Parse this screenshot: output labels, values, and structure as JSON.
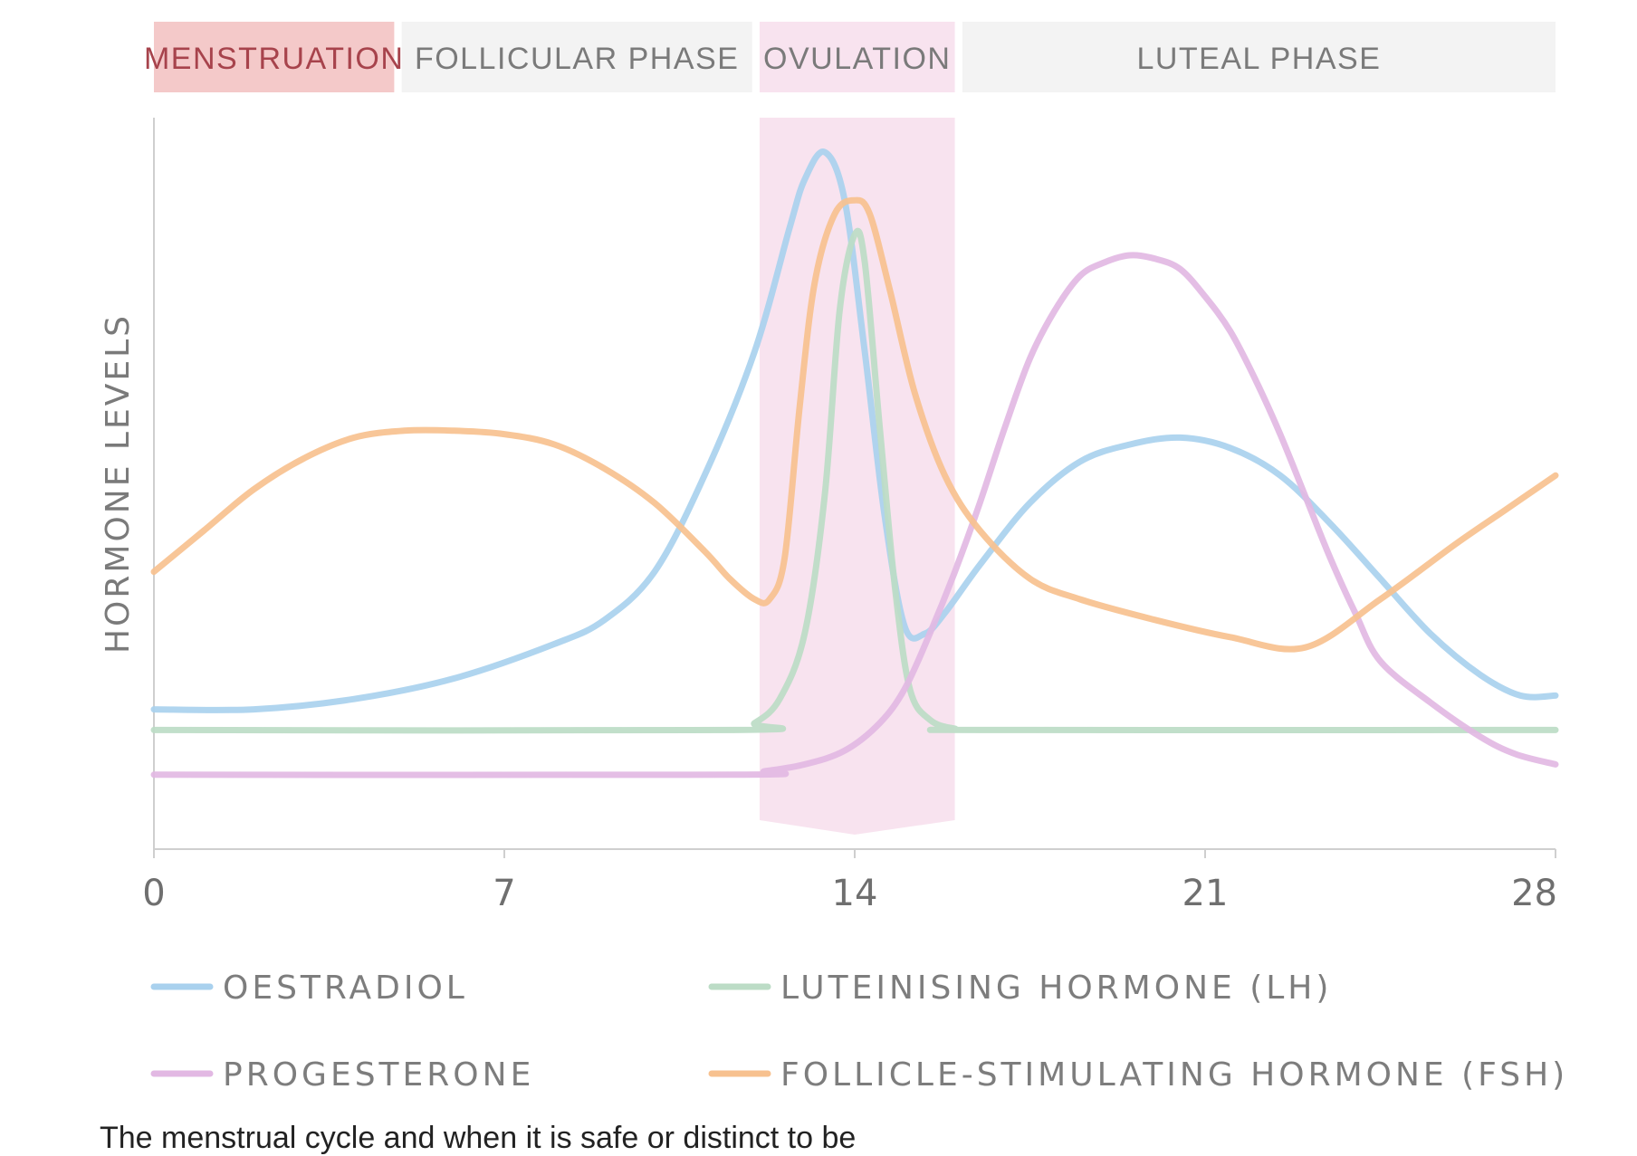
{
  "chart_data": {
    "type": "line",
    "ylabel": "HORMONE LEVELS",
    "xlim": [
      0,
      28
    ],
    "x_ticks": [
      "0",
      "7",
      "14",
      "21",
      "28"
    ],
    "phases": [
      {
        "label": "MENSTRUATION",
        "start": 0,
        "end": 4.8,
        "fill": "#f4c9c9",
        "text_color": "#a7434c"
      },
      {
        "label": "FOLLICULAR PHASE",
        "start": 4.95,
        "end": 11.95,
        "fill": "#f3f3f3",
        "text_color": "#7a7a7a"
      },
      {
        "label": "OVULATION",
        "start": 12.1,
        "end": 16.0,
        "fill": "#f8e3ef",
        "text_color": "#7a7a7a"
      },
      {
        "label": "LUTEAL PHASE",
        "start": 16.15,
        "end": 28,
        "fill": "#f3f3f3",
        "text_color": "#7a7a7a"
      }
    ],
    "ovulation_band": {
      "start": 12.1,
      "end": 16.0,
      "color": "#f8e3ef"
    },
    "series": [
      {
        "name": "OESTRADIOL",
        "color": "#a9d1ee",
        "points": [
          [
            0,
            0.14
          ],
          [
            2,
            0.14
          ],
          [
            4,
            0.155
          ],
          [
            6,
            0.185
          ],
          [
            8,
            0.235
          ],
          [
            9,
            0.27
          ],
          [
            10,
            0.34
          ],
          [
            11,
            0.48
          ],
          [
            12,
            0.66
          ],
          [
            12.7,
            0.84
          ],
          [
            13,
            0.91
          ],
          [
            13.4,
            0.95
          ],
          [
            13.8,
            0.88
          ],
          [
            14.2,
            0.66
          ],
          [
            14.6,
            0.42
          ],
          [
            15,
            0.26
          ],
          [
            15.4,
            0.25
          ],
          [
            15.8,
            0.28
          ],
          [
            16.5,
            0.35
          ],
          [
            17.5,
            0.44
          ],
          [
            18.5,
            0.5
          ],
          [
            19.5,
            0.525
          ],
          [
            20.5,
            0.535
          ],
          [
            21.5,
            0.52
          ],
          [
            22.5,
            0.48
          ],
          [
            23.5,
            0.41
          ],
          [
            24.5,
            0.33
          ],
          [
            25.5,
            0.25
          ],
          [
            26.5,
            0.19
          ],
          [
            27.3,
            0.16
          ],
          [
            28,
            0.16
          ]
        ]
      },
      {
        "name": "LUTEINISING HORMONE (LH)",
        "color": "#bcdcc6",
        "points": [
          [
            0,
            0.11
          ],
          [
            11.6,
            0.11
          ],
          [
            12,
            0.12
          ],
          [
            12.5,
            0.155
          ],
          [
            13,
            0.25
          ],
          [
            13.4,
            0.45
          ],
          [
            13.7,
            0.72
          ],
          [
            14,
            0.83
          ],
          [
            14.2,
            0.79
          ],
          [
            14.5,
            0.55
          ],
          [
            14.8,
            0.32
          ],
          [
            15.1,
            0.17
          ],
          [
            15.5,
            0.125
          ],
          [
            16,
            0.112
          ],
          [
            16.5,
            0.11
          ],
          [
            28,
            0.11
          ]
        ]
      },
      {
        "name": "PROGESTERONE",
        "color": "#e2b8e3",
        "points": [
          [
            0,
            0.045
          ],
          [
            11.6,
            0.045
          ],
          [
            12.2,
            0.05
          ],
          [
            13,
            0.06
          ],
          [
            13.8,
            0.08
          ],
          [
            14.5,
            0.12
          ],
          [
            15,
            0.17
          ],
          [
            15.5,
            0.25
          ],
          [
            16,
            0.34
          ],
          [
            16.5,
            0.44
          ],
          [
            17,
            0.55
          ],
          [
            17.5,
            0.65
          ],
          [
            18,
            0.72
          ],
          [
            18.5,
            0.77
          ],
          [
            19,
            0.79
          ],
          [
            19.5,
            0.8
          ],
          [
            20,
            0.795
          ],
          [
            20.5,
            0.78
          ],
          [
            21,
            0.74
          ],
          [
            21.5,
            0.69
          ],
          [
            22,
            0.62
          ],
          [
            22.5,
            0.54
          ],
          [
            23,
            0.45
          ],
          [
            23.5,
            0.36
          ],
          [
            24,
            0.28
          ],
          [
            24.5,
            0.21
          ],
          [
            25.5,
            0.15
          ],
          [
            26.5,
            0.1
          ],
          [
            27.2,
            0.075
          ],
          [
            28,
            0.06
          ]
        ]
      },
      {
        "name": "FOLLICLE-STIMULATING HORMONE (FSH)",
        "color": "#f7c18f",
        "points": [
          [
            0,
            0.34
          ],
          [
            1,
            0.4
          ],
          [
            2,
            0.46
          ],
          [
            3,
            0.505
          ],
          [
            4,
            0.535
          ],
          [
            5,
            0.545
          ],
          [
            6,
            0.545
          ],
          [
            7,
            0.54
          ],
          [
            8,
            0.525
          ],
          [
            9,
            0.49
          ],
          [
            10,
            0.44
          ],
          [
            11,
            0.37
          ],
          [
            11.5,
            0.33
          ],
          [
            12,
            0.3
          ],
          [
            12.3,
            0.3
          ],
          [
            12.6,
            0.36
          ],
          [
            12.9,
            0.58
          ],
          [
            13.2,
            0.76
          ],
          [
            13.6,
            0.86
          ],
          [
            14,
            0.88
          ],
          [
            14.3,
            0.86
          ],
          [
            14.7,
            0.75
          ],
          [
            15.2,
            0.6
          ],
          [
            15.8,
            0.48
          ],
          [
            16.5,
            0.4
          ],
          [
            17.5,
            0.33
          ],
          [
            18.5,
            0.3
          ],
          [
            20,
            0.27
          ],
          [
            21.5,
            0.245
          ],
          [
            23,
            0.23
          ],
          [
            24.5,
            0.3
          ],
          [
            26,
            0.38
          ],
          [
            27,
            0.43
          ],
          [
            28,
            0.48
          ]
        ]
      }
    ],
    "legend": [
      {
        "label": "OESTRADIOL",
        "color": "#a9d1ee"
      },
      {
        "label": "LUTEINISING HORMONE (LH)",
        "color": "#bcdcc6"
      },
      {
        "label": "PROGESTERONE",
        "color": "#e2b8e3"
      },
      {
        "label": "FOLLICLE-STIMULATING HORMONE (FSH)",
        "color": "#f7c18f"
      }
    ],
    "legend_position": "bottom"
  },
  "caption": "The menstrual cycle and when it is safe or distinct to be"
}
